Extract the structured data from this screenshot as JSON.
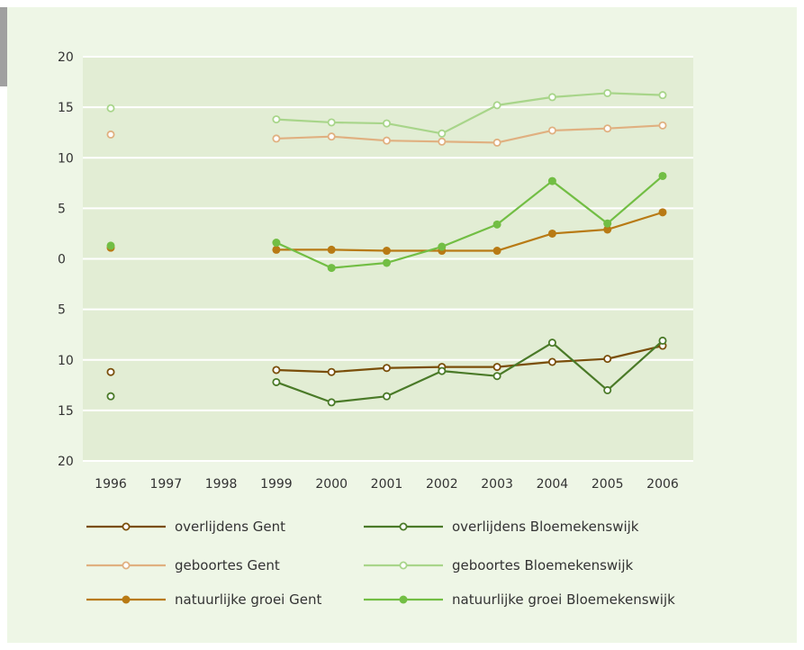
{
  "chart_data": {
    "type": "line",
    "title": "",
    "xlabel": "",
    "ylabel": "",
    "categories": [
      "1996",
      "1997",
      "1998",
      "1999",
      "2000",
      "2001",
      "2002",
      "2003",
      "2004",
      "2005",
      "2006"
    ],
    "ylim": [
      -20,
      20
    ],
    "y_tick_values": [
      20,
      15,
      10,
      5,
      0,
      -5,
      -10,
      -15,
      -20
    ],
    "y_tick_labels": [
      "20",
      "15",
      "10",
      "5",
      "0",
      "5",
      "10",
      "15",
      "20"
    ],
    "grid": true,
    "legend_position": "bottom",
    "series": [
      {
        "name": "overlijdens Gent",
        "color": "#7a4e0a",
        "marker": "open",
        "values": [
          -11.2,
          null,
          null,
          -11.0,
          -11.2,
          -10.8,
          -10.7,
          -10.7,
          -10.2,
          -9.9,
          -8.6
        ]
      },
      {
        "name": "overlijdens Bloemekenswijk",
        "color": "#4a7a28",
        "marker": "open",
        "values": [
          -13.6,
          null,
          null,
          -12.2,
          -14.2,
          -13.6,
          -11.1,
          -11.6,
          -8.3,
          -13.0,
          -8.1
        ]
      },
      {
        "name": "geboortes Gent",
        "color": "#e0b080",
        "marker": "open",
        "values": [
          12.3,
          null,
          null,
          11.9,
          12.1,
          11.7,
          11.6,
          11.5,
          12.7,
          12.9,
          13.2
        ]
      },
      {
        "name": "geboortes Bloemekenswijk",
        "color": "#a8d58a",
        "marker": "open",
        "values": [
          14.9,
          null,
          null,
          13.8,
          13.5,
          13.4,
          12.4,
          15.2,
          16.0,
          16.4,
          16.2
        ]
      },
      {
        "name": "natuurlijke groei Gent",
        "color": "#b87a14",
        "marker": "filled",
        "values": [
          1.1,
          null,
          null,
          0.9,
          0.9,
          0.8,
          0.8,
          0.8,
          2.5,
          2.9,
          4.6
        ]
      },
      {
        "name": "natuurlijke groei Bloemekenswijk",
        "color": "#72be44",
        "marker": "filled",
        "values": [
          1.3,
          null,
          null,
          1.6,
          -0.9,
          -0.4,
          1.2,
          3.4,
          7.7,
          3.5,
          8.2
        ]
      }
    ]
  }
}
